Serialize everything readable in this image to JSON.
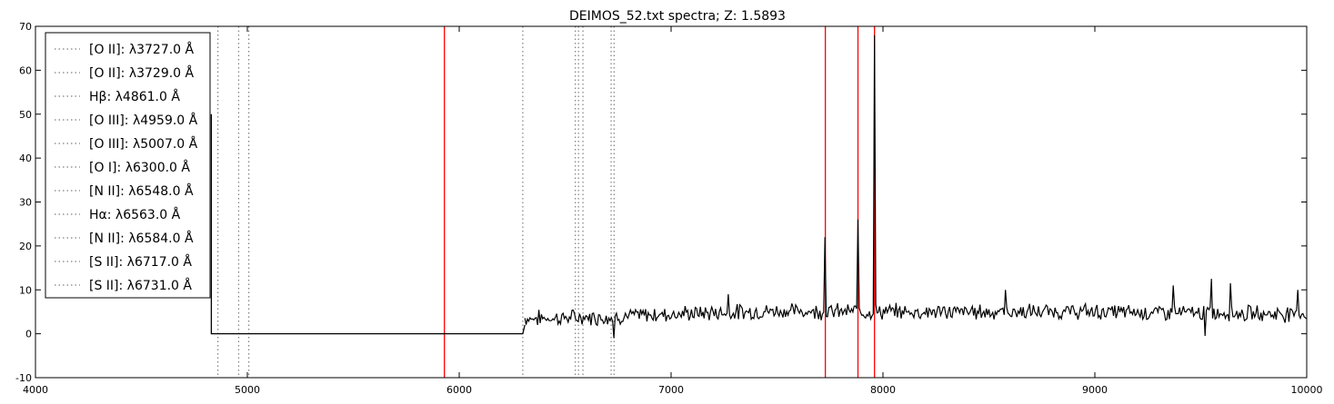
{
  "chart_data": {
    "type": "line",
    "title": "DEIMOS_52.txt spectra; Z: 1.5893",
    "xlabel": "",
    "ylabel": "",
    "xlim": [
      4000,
      10000
    ],
    "ylim": [
      -10,
      70
    ],
    "x_ticks": [
      4000,
      5000,
      6000,
      7000,
      8000,
      9000,
      10000
    ],
    "y_ticks": [
      -10,
      0,
      10,
      20,
      30,
      40,
      50,
      60,
      70
    ],
    "grid": false,
    "legend_position": "upper-left",
    "colors": {
      "spectrum": "#000000",
      "observed_lines": "#ff0000",
      "rest_lines": "#808080"
    },
    "legend": [
      {
        "label": "[O II]: λ3727.0 Å",
        "wavelength": 3727.0
      },
      {
        "label": "[O II]: λ3729.0 Å",
        "wavelength": 3729.0
      },
      {
        "label": "Hβ: λ4861.0 Å",
        "wavelength": 4861.0
      },
      {
        "label": "[O III]: λ4959.0 Å",
        "wavelength": 4959.0
      },
      {
        "label": "[O III]: λ5007.0 Å",
        "wavelength": 5007.0
      },
      {
        "label": "[O I]: λ6300.0 Å",
        "wavelength": 6300.0
      },
      {
        "label": "[N II]: λ6548.0 Å",
        "wavelength": 6548.0
      },
      {
        "label": "Hα: λ6563.0 Å",
        "wavelength": 6563.0
      },
      {
        "label": "[N II]: λ6584.0 Å",
        "wavelength": 6584.0
      },
      {
        "label": "[S II]: λ6717.0 Å",
        "wavelength": 6717.0
      },
      {
        "label": "[S II]: λ6731.0 Å",
        "wavelength": 6731.0
      }
    ],
    "observed_lines": [
      5930,
      7728,
      7882,
      7960
    ],
    "spectrum_segments": [
      {
        "x": [
          4830,
          4830,
          4835,
          6300,
          6310
        ],
        "y": [
          50,
          0,
          0,
          0,
          2
        ]
      }
    ],
    "spectrum_noisy": {
      "x_start": 6310,
      "x_end": 10000,
      "step": 6,
      "baseline": [
        [
          6310,
          3.5
        ],
        [
          6700,
          3.8
        ],
        [
          7000,
          4.5
        ],
        [
          7500,
          5.2
        ],
        [
          8000,
          5.0
        ],
        [
          9000,
          5.0
        ],
        [
          10000,
          4.5
        ]
      ],
      "noise_amplitude": 1.4,
      "peaks": [
        {
          "x": 7728,
          "y": 22
        },
        {
          "x": 7882,
          "y": 26
        },
        {
          "x": 7960,
          "y": 68
        },
        {
          "x": 7270,
          "y": 9
        },
        {
          "x": 8580,
          "y": 10
        },
        {
          "x": 9370,
          "y": 11
        },
        {
          "x": 9550,
          "y": 12.5
        },
        {
          "x": 9640,
          "y": 11.5
        },
        {
          "x": 9960,
          "y": 10
        },
        {
          "x": 6730,
          "y": -1
        },
        {
          "x": 9520,
          "y": -0.5
        }
      ]
    }
  }
}
